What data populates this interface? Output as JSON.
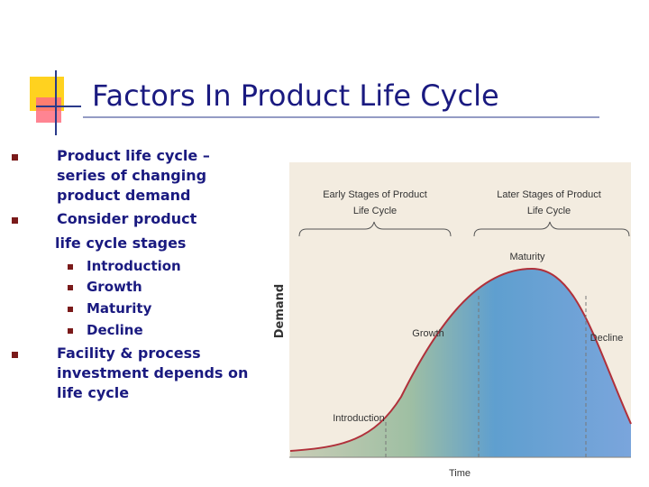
{
  "title": "Factors In Product Life Cycle",
  "bullets": [
    {
      "lines": [
        "Product life cycle –",
        "series of changing",
        "product demand"
      ]
    },
    {
      "lines": [
        "Consider product",
        "life cycle stages"
      ],
      "sub": [
        "Introduction",
        "Growth",
        "Maturity",
        "Decline"
      ]
    },
    {
      "lines": [
        "Facility & process",
        "investment depends on",
        "life cycle"
      ]
    }
  ],
  "diagram": {
    "y_axis": "Demand",
    "x_axis": "Time",
    "brackets": [
      [
        "Early Stages of Product",
        "Life Cycle"
      ],
      [
        "Later Stages of Product",
        "Life Cycle"
      ]
    ],
    "stages": [
      "Introduction",
      "Growth",
      "Maturity",
      "Decline"
    ]
  }
}
